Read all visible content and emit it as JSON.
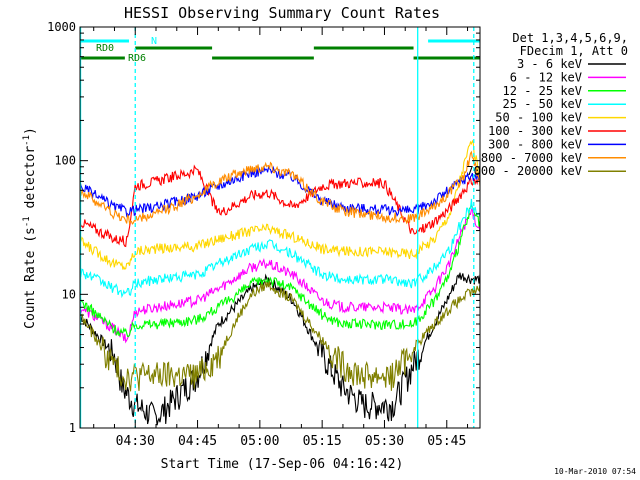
{
  "chart_data": {
    "type": "line",
    "title": "HESSI Observing Summary Count Rates",
    "xlabel": "Start Time (17-Sep-06 04:16:42)",
    "ylabel": "Count Rate (s⁻¹ detector⁻¹)",
    "y_scale": "log",
    "ylim": [
      1,
      1000
    ],
    "xlim_minutes": [
      0,
      36.3
    ],
    "x_ticks": [
      {
        "label": "04:30",
        "minute": 13.3
      },
      {
        "label": "04:45",
        "minute": 28.3
      },
      {
        "label": "05:00",
        "minute": 43.3
      },
      {
        "label": "05:15",
        "minute": 58.3
      },
      {
        "label": "05:30",
        "minute": 73.3
      },
      {
        "label": "05:45",
        "minute": 88.3
      }
    ],
    "xlim": [
      "04:16:42",
      "05:53:00"
    ],
    "y_ticks": [
      {
        "label": "1",
        "value": 1
      },
      {
        "label": "10",
        "value": 10
      },
      {
        "label": "100",
        "value": 100
      },
      {
        "label": "1000",
        "value": 1000
      }
    ],
    "legend": {
      "placement": "right",
      "header": [
        "Det 1,3,4,5,6,9,",
        "FDecim 1, Att 0"
      ]
    },
    "series": [
      {
        "name": "3 - 6 keV",
        "color": "#000000",
        "x": [
          "04:16:42",
          "04:25",
          "04:27",
          "04:30",
          "04:35",
          "04:45",
          "04:50",
          "04:58",
          "05:02",
          "05:08",
          "05:14",
          "05:20",
          "05:25",
          "05:32",
          "05:37",
          "05:42",
          "05:45",
          "05:48",
          "05:51",
          "05:53"
        ],
        "y": [
          7,
          3.5,
          2,
          1.5,
          1.2,
          2.5,
          6,
          11,
          13,
          9,
          4,
          2,
          1.5,
          1.5,
          3,
          6,
          9,
          14,
          13,
          13
        ]
      },
      {
        "name": "6 - 12 keV",
        "color": "#ff00ff",
        "x": [
          "04:16:42",
          "04:25",
          "04:28",
          "04:30",
          "04:35",
          "04:45",
          "04:50",
          "04:58",
          "05:02",
          "05:08",
          "05:15",
          "05:20",
          "05:30",
          "05:37",
          "05:42",
          "05:46",
          "05:49",
          "05:51",
          "05:53"
        ],
        "y": [
          8,
          5.5,
          4.5,
          7.5,
          8,
          9,
          11,
          16,
          17,
          14,
          9,
          8,
          8,
          7.5,
          11,
          18,
          32,
          42,
          30
        ]
      },
      {
        "name": "12 - 25 keV",
        "color": "#00ff00",
        "x": [
          "04:16:42",
          "04:25",
          "04:28",
          "04:30",
          "04:35",
          "04:45",
          "04:50",
          "04:58",
          "05:02",
          "05:08",
          "05:15",
          "05:20",
          "05:30",
          "05:37",
          "05:42",
          "05:46",
          "05:49",
          "05:51",
          "05:53"
        ],
        "y": [
          9,
          5.5,
          5,
          6,
          6,
          6.5,
          8,
          12,
          13,
          11,
          7,
          6,
          6,
          6,
          9,
          15,
          30,
          45,
          33
        ]
      },
      {
        "name": "25 - 50 keV",
        "color": "#00ffff",
        "x": [
          "04:16:42",
          "04:25",
          "04:28",
          "04:30",
          "04:35",
          "04:45",
          "04:50",
          "04:58",
          "05:02",
          "05:08",
          "05:15",
          "05:20",
          "05:30",
          "05:37",
          "05:42",
          "05:46",
          "05:49",
          "05:51",
          "05:53"
        ],
        "y": [
          15,
          11,
          10,
          12,
          13,
          14,
          17,
          22,
          24,
          20,
          14,
          13,
          13,
          12,
          16,
          23,
          38,
          48,
          38
        ]
      },
      {
        "name": "50 - 100 keV",
        "color": "#ffd700",
        "x": [
          "04:16:42",
          "04:25",
          "04:28",
          "04:30",
          "04:35",
          "04:45",
          "04:50",
          "04:58",
          "05:02",
          "05:08",
          "05:15",
          "05:20",
          "05:30",
          "05:37",
          "05:42",
          "05:46",
          "05:49",
          "05:51",
          "05:53"
        ],
        "y": [
          25,
          17,
          16,
          21,
          22,
          23,
          26,
          30,
          31,
          27,
          22,
          21,
          21,
          20,
          26,
          42,
          90,
          145,
          75
        ]
      },
      {
        "name": "100 - 300 keV",
        "color": "#ff0000",
        "x": [
          "04:16:42",
          "04:25",
          "04:28",
          "04:30",
          "04:35",
          "04:45",
          "04:50",
          "04:58",
          "05:02",
          "05:08",
          "05:15",
          "05:20",
          "05:30",
          "05:37",
          "05:42",
          "05:46",
          "05:49",
          "05:51",
          "05:53"
        ],
        "y": [
          35,
          26,
          25,
          65,
          70,
          85,
          40,
          55,
          58,
          45,
          65,
          68,
          68,
          28,
          35,
          45,
          60,
          70,
          70
        ]
      },
      {
        "name": "300 - 800 keV",
        "color": "#0000ff",
        "x": [
          "04:16:42",
          "04:25",
          "04:28",
          "04:30",
          "04:35",
          "04:45",
          "04:50",
          "04:58",
          "05:02",
          "05:08",
          "05:15",
          "05:20",
          "05:30",
          "05:37",
          "05:42",
          "05:46",
          "05:49",
          "05:51",
          "05:53"
        ],
        "y": [
          65,
          45,
          42,
          43,
          45,
          55,
          65,
          82,
          85,
          75,
          50,
          45,
          43,
          42,
          50,
          62,
          72,
          78,
          75
        ]
      },
      {
        "name": "800 - 7000 keV",
        "color": "#ff8c00",
        "x": [
          "04:16:42",
          "04:25",
          "04:28",
          "04:30",
          "04:35",
          "04:45",
          "04:50",
          "04:58",
          "05:02",
          "05:08",
          "05:15",
          "05:20",
          "05:30",
          "05:37",
          "05:42",
          "05:46",
          "05:49",
          "05:51",
          "05:53"
        ],
        "y": [
          60,
          40,
          36,
          36,
          40,
          55,
          70,
          88,
          92,
          78,
          50,
          42,
          38,
          37,
          45,
          60,
          75,
          115,
          65
        ]
      },
      {
        "name": "7000 - 20000 keV",
        "color": "#808000",
        "x": [
          "04:16:42",
          "04:22",
          "04:25",
          "04:27",
          "04:30",
          "04:35",
          "04:45",
          "04:50",
          "04:55",
          "04:58",
          "05:02",
          "05:08",
          "05:14",
          "05:20",
          "05:25",
          "05:32",
          "05:37",
          "05:42",
          "05:46",
          "05:50",
          "05:53"
        ],
        "y": [
          7,
          4,
          3,
          2.5,
          2.5,
          2.5,
          2.5,
          3.5,
          7,
          10,
          12,
          9,
          5,
          3,
          2.5,
          2.5,
          4,
          6,
          8,
          10,
          11
        ]
      }
    ],
    "annotations": [
      {
        "label": "RD0",
        "color": "#008000"
      },
      {
        "label": "RD6",
        "color": "#008000"
      },
      {
        "label": "N",
        "color": "#00ffff"
      }
    ],
    "footer_stamp": "10-Mar-2010 07:54"
  }
}
